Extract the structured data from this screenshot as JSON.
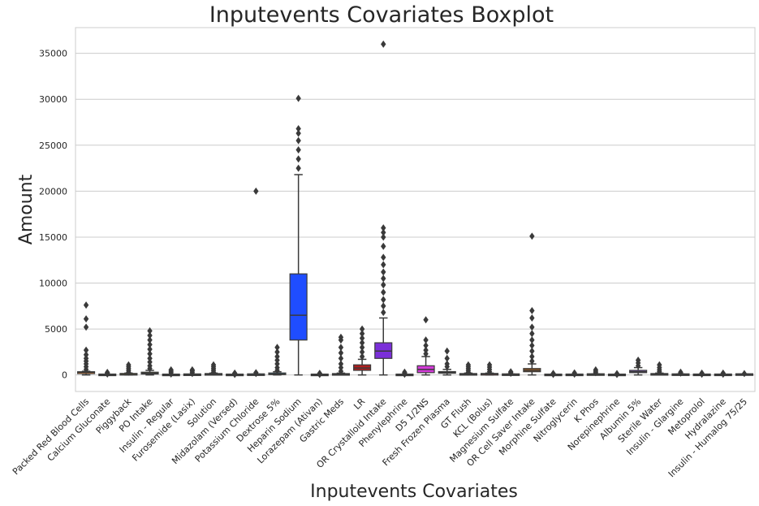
{
  "chart_data": {
    "type": "box",
    "title": "Inputevents Covariates Boxplot",
    "xlabel": "Inputevents Covariates",
    "ylabel": "Amount",
    "ylim": [
      -1800,
      37800
    ],
    "yticks": [
      0,
      5000,
      10000,
      15000,
      20000,
      25000,
      30000,
      35000
    ],
    "grid": "y",
    "categories": [
      "Packed Red Blood Cells",
      "Calcium Gluconate",
      "Piggyback",
      "PO Intake",
      "Insulin - Regular",
      "Furosemide (Lasix)",
      "Solution",
      "Midazolam (Versed)",
      "Potassium Chloride",
      "Dextrose 5%",
      "Heparin Sodium",
      "Lorazepam (Ativan)",
      "Gastric Meds",
      "LR",
      "OR Crystalloid Intake",
      "Phenylephrine",
      "D5 1/2NS",
      "Fresh Frozen Plasma",
      "GT Flush",
      "KCL (Bolus)",
      "Magnesium Sulfate",
      "OR Cell Saver Intake",
      "Morphine Sulfate",
      "Nitroglycerin",
      "K Phos",
      "Norepinephrine",
      "Albumin 5%",
      "Sterile Water",
      "Insulin - Glargine",
      "Metoprolol",
      "Hydralazine",
      "Insulin - Humalog 75/25"
    ],
    "colors": [
      "#ff6f00",
      "#ff8a00",
      "#c8b400",
      "#a0b900",
      "#58c400",
      "#1ec400",
      "#00c060",
      "#00c09a",
      "#00b3c8",
      "#0095d6",
      "#1f4dff",
      "#3a2bff",
      "#5a0fe0",
      "#b01e1e",
      "#7b2fd9",
      "#c02fd3",
      "#d33ad8",
      "#e03aa8",
      "#d43a60",
      "#c93c3c",
      "#b24a2d",
      "#a05a1c",
      "#8a6a12",
      "#7a7a10",
      "#5f8a14",
      "#3e9418",
      "#8f5cd8",
      "#2a9a6a",
      "#1aa0a0",
      "#1c8fc0",
      "#2f7ad0",
      "#4a66d8"
    ],
    "boxes": [
      {
        "q1": 150,
        "median": 300,
        "q3": 350,
        "whisker_low": 0,
        "whisker_high": 400,
        "outliers": [
          600,
          900,
          1200,
          1500,
          1800,
          2200,
          2700,
          5200,
          6100,
          7600
        ]
      },
      {
        "q1": 0,
        "median": 10,
        "q3": 20,
        "whisker_low": 0,
        "whisker_high": 50,
        "outliers": [
          100,
          150,
          200,
          280
        ]
      },
      {
        "q1": 50,
        "median": 50,
        "q3": 100,
        "whisker_low": 0,
        "whisker_high": 200,
        "outliers": [
          300,
          500,
          700,
          900,
          1100
        ]
      },
      {
        "q1": 100,
        "median": 200,
        "q3": 300,
        "whisker_low": 0,
        "whisker_high": 500,
        "outliers": [
          700,
          1000,
          1400,
          1800,
          2300,
          2800,
          3300,
          3800,
          4300,
          4800
        ]
      },
      {
        "q1": 0,
        "median": 5,
        "q3": 10,
        "whisker_low": 0,
        "whisker_high": 25,
        "outliers": [
          100,
          250,
          400,
          550
        ]
      },
      {
        "q1": 10,
        "median": 20,
        "q3": 40,
        "whisker_low": 0,
        "whisker_high": 80,
        "outliers": [
          150,
          300,
          450,
          550
        ]
      },
      {
        "q1": 30,
        "median": 50,
        "q3": 100,
        "whisker_low": 0,
        "whisker_high": 200,
        "outliers": [
          300,
          500,
          700,
          900,
          1100
        ]
      },
      {
        "q1": 0,
        "median": 5,
        "q3": 10,
        "whisker_low": 0,
        "whisker_high": 25,
        "outliers": [
          60,
          110,
          160,
          200
        ]
      },
      {
        "q1": 10,
        "median": 20,
        "q3": 50,
        "whisker_low": 0,
        "whisker_high": 100,
        "outliers": [
          150,
          250,
          20000
        ]
      },
      {
        "q1": 50,
        "median": 100,
        "q3": 200,
        "whisker_low": 0,
        "whisker_high": 350,
        "outliers": [
          500,
          800,
          1200,
          1600,
          2000,
          2500,
          3000
        ]
      },
      {
        "q1": 3800,
        "median": 6500,
        "q3": 11000,
        "whisker_low": 0,
        "whisker_high": 21800,
        "outliers": [
          22500,
          23500,
          24500,
          25500,
          26300,
          26800,
          30100
        ]
      },
      {
        "q1": 0,
        "median": 5,
        "q3": 10,
        "whisker_low": 0,
        "whisker_high": 25,
        "outliers": [
          60,
          120,
          180
        ]
      },
      {
        "q1": 20,
        "median": 50,
        "q3": 100,
        "whisker_low": 0,
        "whisker_high": 200,
        "outliers": [
          400,
          800,
          1200,
          1800,
          2400,
          3000,
          3800,
          4100
        ]
      },
      {
        "q1": 500,
        "median": 750,
        "q3": 1100,
        "whisker_low": 0,
        "whisker_high": 1700,
        "outliers": [
          2000,
          2500,
          3000,
          3500,
          4000,
          4500,
          5000
        ]
      },
      {
        "q1": 1800,
        "median": 2600,
        "q3": 3500,
        "whisker_low": 0,
        "whisker_high": 6200,
        "outliers": [
          6800,
          7500,
          8200,
          9000,
          9800,
          10500,
          11200,
          12000,
          12800,
          14000,
          15000,
          15500,
          16000,
          36000
        ]
      },
      {
        "q1": 0,
        "median": 5,
        "q3": 10,
        "whisker_low": 0,
        "whisker_high": 25,
        "outliers": [
          80,
          150,
          220,
          300
        ]
      },
      {
        "q1": 250,
        "median": 600,
        "q3": 1000,
        "whisker_low": 0,
        "whisker_high": 2000,
        "outliers": [
          2300,
          2700,
          3200,
          3800,
          6000
        ]
      },
      {
        "q1": 200,
        "median": 250,
        "q3": 350,
        "whisker_low": 0,
        "whisker_high": 600,
        "outliers": [
          900,
          1200,
          1800,
          2600
        ]
      },
      {
        "q1": 30,
        "median": 50,
        "q3": 100,
        "whisker_low": 0,
        "whisker_high": 200,
        "outliers": [
          300,
          500,
          700,
          900,
          1100
        ]
      },
      {
        "q1": 50,
        "median": 100,
        "q3": 100,
        "whisker_low": 0,
        "whisker_high": 200,
        "outliers": [
          350,
          600,
          850,
          1100
        ]
      },
      {
        "q1": 10,
        "median": 25,
        "q3": 50,
        "whisker_low": 0,
        "whisker_high": 100,
        "outliers": [
          180,
          280,
          350
        ]
      },
      {
        "q1": 350,
        "median": 500,
        "q3": 700,
        "whisker_low": 0,
        "whisker_high": 1200,
        "outliers": [
          1500,
          2000,
          2600,
          3200,
          3800,
          4500,
          5200,
          6200,
          7000,
          15100
        ]
      },
      {
        "q1": 0,
        "median": 5,
        "q3": 10,
        "whisker_low": 0,
        "whisker_high": 25,
        "outliers": [
          60,
          120,
          170
        ]
      },
      {
        "q1": 0,
        "median": 10,
        "q3": 20,
        "whisker_low": 0,
        "whisker_high": 40,
        "outliers": [
          90,
          150,
          220
        ]
      },
      {
        "q1": 20,
        "median": 40,
        "q3": 60,
        "whisker_low": 0,
        "whisker_high": 120,
        "outliers": [
          250,
          400,
          550
        ]
      },
      {
        "q1": 0,
        "median": 5,
        "q3": 10,
        "whisker_low": 0,
        "whisker_high": 20,
        "outliers": [
          50,
          100,
          150
        ]
      },
      {
        "q1": 250,
        "median": 350,
        "q3": 500,
        "whisker_low": 0,
        "whisker_high": 800,
        "outliers": [
          1000,
          1300,
          1600
        ]
      },
      {
        "q1": 30,
        "median": 50,
        "q3": 100,
        "whisker_low": 0,
        "whisker_high": 200,
        "outliers": [
          350,
          550,
          800,
          1100
        ]
      },
      {
        "q1": 10,
        "median": 30,
        "q3": 50,
        "whisker_low": 0,
        "whisker_high": 100,
        "outliers": [
          200,
          300
        ]
      },
      {
        "q1": 5,
        "median": 10,
        "q3": 20,
        "whisker_low": 0,
        "whisker_high": 40,
        "outliers": [
          80,
          150,
          200
        ]
      },
      {
        "q1": 5,
        "median": 10,
        "q3": 20,
        "whisker_low": 0,
        "whisker_high": 40,
        "outliers": [
          80,
          130,
          200
        ]
      },
      {
        "q1": 20,
        "median": 40,
        "q3": 60,
        "whisker_low": 0,
        "whisker_high": 100,
        "outliers": [
          150
        ]
      }
    ]
  }
}
